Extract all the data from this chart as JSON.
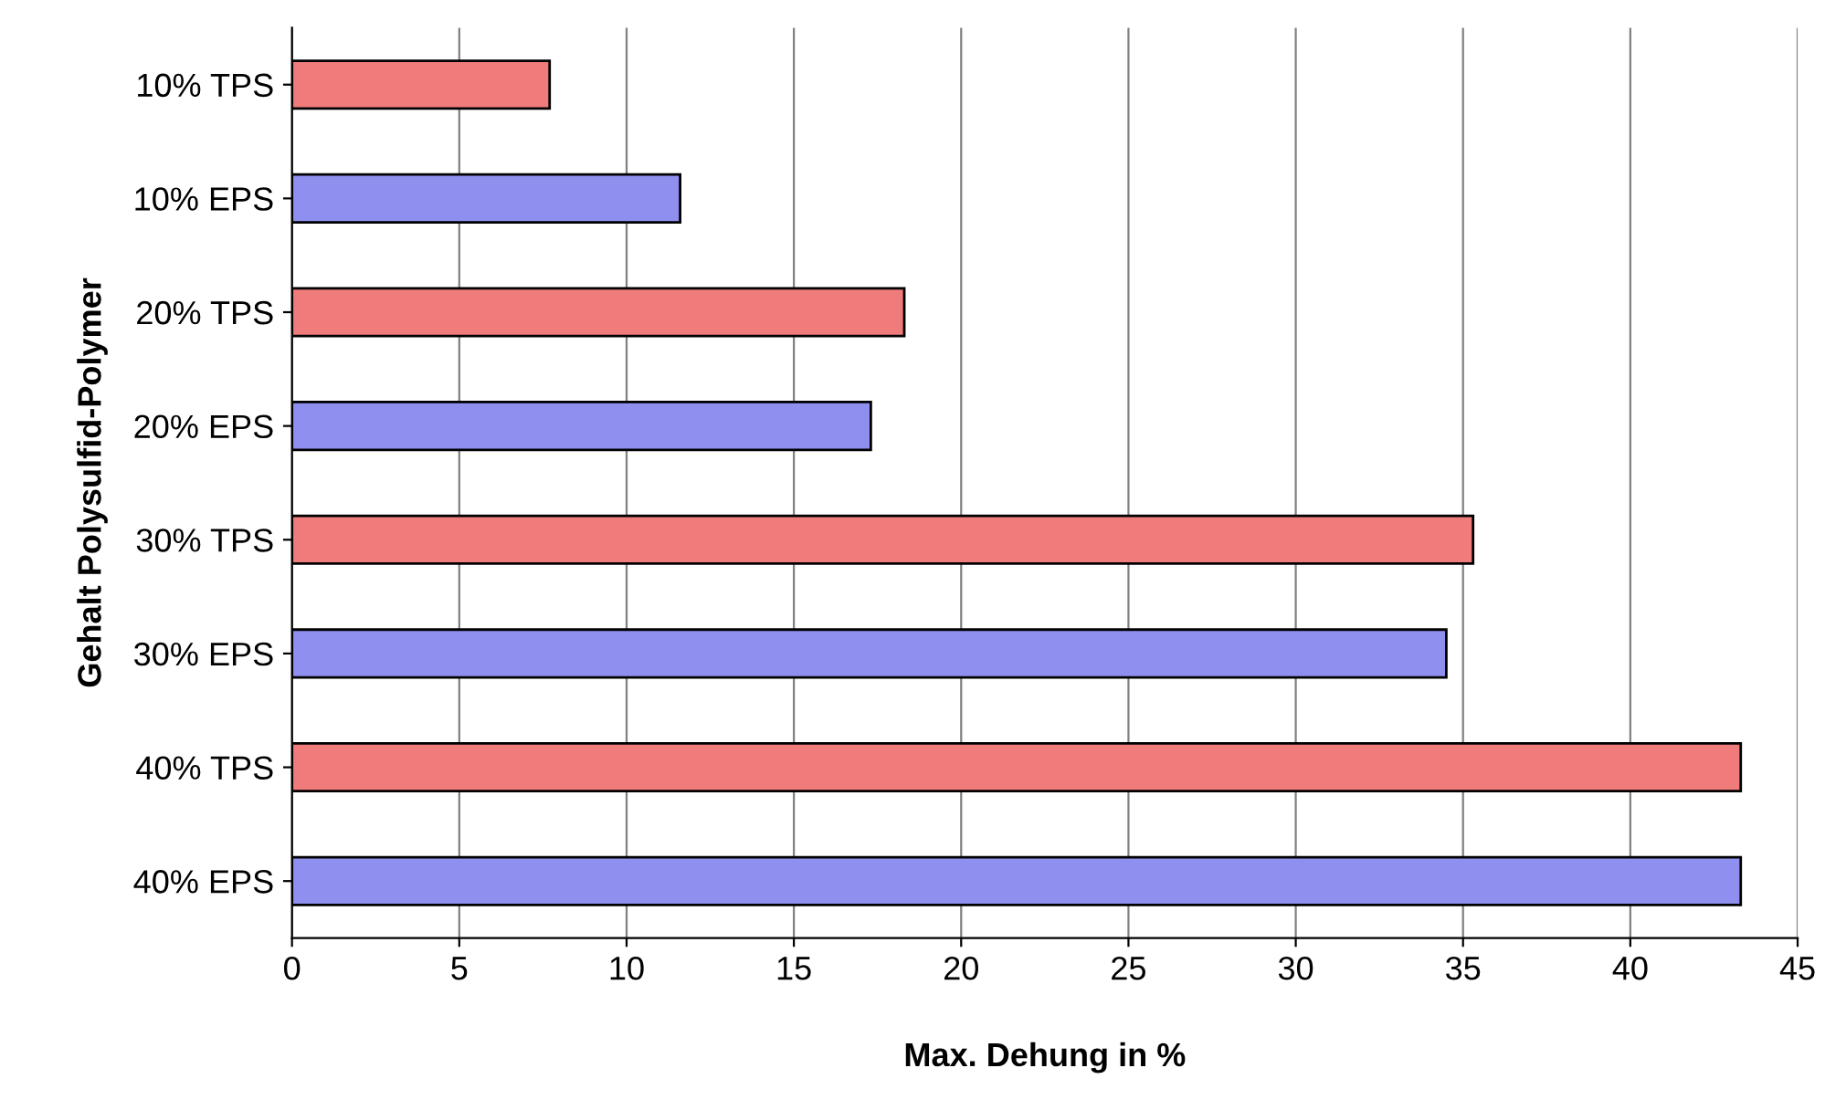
{
  "chart_data": {
    "type": "bar",
    "orientation": "horizontal",
    "xlabel": "Max. Dehung in %",
    "ylabel": "Gehalt Polysulfid-Polymer",
    "categories": [
      "10% TPS",
      "10% EPS",
      "20% TPS",
      "20% EPS",
      "30% TPS",
      "30% EPS",
      "40% TPS",
      "40% EPS"
    ],
    "values": [
      7.7,
      11.6,
      18.3,
      17.3,
      35.3,
      34.5,
      43.3,
      43.3
    ],
    "colors": [
      "#f07b7b",
      "#8f8ff0",
      "#f07b7b",
      "#8f8ff0",
      "#f07b7b",
      "#8f8ff0",
      "#f07b7b",
      "#8f8ff0"
    ],
    "xlim": [
      0,
      45
    ],
    "xticks": [
      0,
      5,
      10,
      15,
      20,
      25,
      30,
      35,
      40,
      45
    ],
    "grid": "x"
  }
}
